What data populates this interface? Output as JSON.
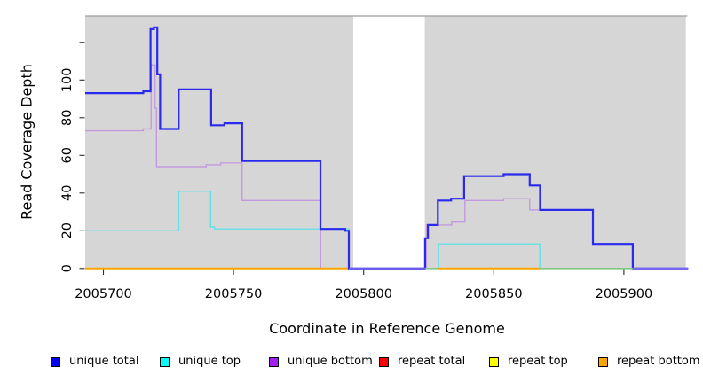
{
  "chart_data": {
    "type": "line",
    "subtype": "step-coverage",
    "title": "",
    "xlabel": "Coordinate in Reference Genome",
    "ylabel": "Read Coverage Depth",
    "xlim": [
      2005693,
      2005924.7
    ],
    "ylim": [
      0,
      134
    ],
    "grid": false,
    "x_ticks": [
      2005700,
      2005750,
      2005800,
      2005850,
      2005900
    ],
    "y_ticks": [
      {
        "v": 0,
        "label": "0"
      },
      {
        "v": 20,
        "label": "20"
      },
      {
        "v": 40,
        "label": "40"
      },
      {
        "v": 60,
        "label": "60"
      },
      {
        "v": 80,
        "label": "80"
      },
      {
        "v": 100,
        "label": "100"
      },
      {
        "v": 120,
        "label": ""
      }
    ],
    "background_regions": [
      {
        "x1": 2005693,
        "x2": 2005796,
        "fill": "#D6D6D6"
      },
      {
        "x1": 2005823.5,
        "x2": 2005923.8,
        "fill": "#D6D6D6"
      }
    ],
    "coverage_gap": {
      "x1": 2005796,
      "x2": 2005823.5
    },
    "series": [
      {
        "name": "repeat total",
        "color": "#FF0000",
        "width": 1.2,
        "step_points": [
          [
            2005693,
            0
          ],
          [
            2005924.7,
            0
          ]
        ]
      },
      {
        "name": "repeat top",
        "color": "#FFFF00",
        "width": 1.2,
        "step_points": [
          [
            2005693,
            0
          ],
          [
            2005924.7,
            0
          ]
        ]
      },
      {
        "name": "unique top",
        "color": "#63E0E6",
        "width": 1.4,
        "step_points": [
          [
            2005693,
            20
          ],
          [
            2005728.9,
            41
          ],
          [
            2005741.2,
            22
          ],
          [
            2005742.7,
            21
          ],
          [
            2005794.3,
            0
          ],
          [
            2005828.8,
            13
          ],
          [
            2005867.7,
            0
          ],
          [
            2005924.7,
            0
          ]
        ]
      },
      {
        "name": "unique bottom",
        "color": "#C49ADF",
        "width": 1.4,
        "step_points": [
          [
            2005693,
            73
          ],
          [
            2005715.3,
            74
          ],
          [
            2005718.3,
            108
          ],
          [
            2005719.8,
            85
          ],
          [
            2005720.4,
            54
          ],
          [
            2005739.5,
            55
          ],
          [
            2005745,
            56
          ],
          [
            2005753.3,
            36
          ],
          [
            2005783.5,
            0
          ],
          [
            2005824.1,
            23
          ],
          [
            2005833.8,
            25
          ],
          [
            2005838.9,
            36
          ],
          [
            2005853.8,
            37
          ],
          [
            2005863.8,
            31
          ],
          [
            2005888.1,
            13
          ],
          [
            2005903.4,
            0
          ],
          [
            2005924.7,
            0
          ]
        ]
      },
      {
        "name": "repeat bottom",
        "color": "#FFA500",
        "width": 2,
        "step_points": [
          [
            2005693,
            0
          ],
          [
            2005794,
            0
          ],
          null,
          [
            2005828.6,
            0
          ],
          [
            2005867.7,
            0
          ]
        ]
      },
      {
        "name": "unique total",
        "color": "#2A2AEE",
        "width": 2.2,
        "step_points": [
          [
            2005693,
            93
          ],
          [
            2005715.3,
            94
          ],
          [
            2005718.1,
            127
          ],
          [
            2005719.4,
            128
          ],
          [
            2005720.7,
            103
          ],
          [
            2005721.8,
            74
          ],
          [
            2005728.9,
            95
          ],
          [
            2005741.4,
            76
          ],
          [
            2005746.5,
            77
          ],
          [
            2005753.3,
            57
          ],
          [
            2005783.4,
            21
          ],
          [
            2005792.9,
            20
          ],
          [
            2005794.3,
            0
          ],
          [
            2005823.6,
            16
          ],
          [
            2005824.7,
            23
          ],
          [
            2005828.5,
            36
          ],
          [
            2005833.6,
            37
          ],
          [
            2005838.6,
            49
          ],
          [
            2005853.8,
            50
          ],
          [
            2005863.8,
            44
          ],
          [
            2005867.8,
            31
          ],
          [
            2005888.1,
            13
          ],
          [
            2005903.4,
            0
          ],
          [
            2005924.7,
            0
          ]
        ]
      }
    ],
    "zero_line_overlaps": [
      {
        "color": "#7EC87E",
        "width": 1.6,
        "x1": 2005823.5,
        "x2": 2005828.8
      },
      {
        "color": "#7EC87E",
        "width": 1.6,
        "x1": 2005867.7,
        "x2": 2005903.4
      },
      {
        "color": "#6C5CE8",
        "width": 2.0,
        "x1": 2005794.3,
        "x2": 2005823.6
      },
      {
        "color": "#7B68EE",
        "width": 2.0,
        "x1": 2005903.4,
        "x2": 2005924.7
      }
    ],
    "legend": [
      {
        "label": "unique total",
        "color": "#0000EE"
      },
      {
        "label": "unique top",
        "color": "#00FFFF"
      },
      {
        "label": "unique bottom",
        "color": "#A020F0"
      },
      {
        "label": "repeat total",
        "color": "#FF0000"
      },
      {
        "label": "repeat top",
        "color": "#FFFF00"
      },
      {
        "label": "repeat bottom",
        "color": "#FFA500"
      }
    ],
    "legend_position": "bottom"
  }
}
